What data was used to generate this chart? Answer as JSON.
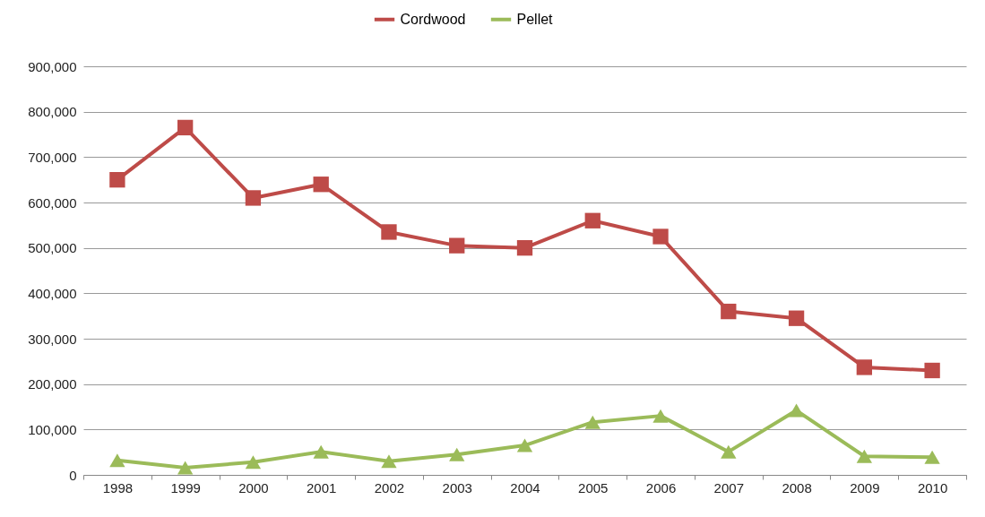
{
  "chart_data": {
    "type": "line",
    "categories": [
      "1998",
      "1999",
      "2000",
      "2001",
      "2002",
      "2003",
      "2004",
      "2005",
      "2006",
      "2007",
      "2008",
      "2009",
      "2010"
    ],
    "series": [
      {
        "name": "Cordwood",
        "color": "#be4b48",
        "marker": "square",
        "values": [
          650000,
          765000,
          610000,
          640000,
          535000,
          505000,
          500000,
          560000,
          525000,
          360000,
          345000,
          237000,
          230000
        ]
      },
      {
        "name": "Pellet",
        "color": "#9bbb59",
        "marker": "triangle",
        "values": [
          32000,
          16000,
          28000,
          51000,
          30000,
          45000,
          65000,
          116000,
          130000,
          51000,
          142000,
          41000,
          39000
        ]
      }
    ],
    "ylim": [
      0,
      900000
    ],
    "yticks": [
      0,
      {
        "value": 100000,
        "label": "100,000"
      },
      {
        "value": 200000,
        "label": "200,000"
      },
      {
        "value": 300000,
        "label": "300,000"
      },
      {
        "value": 400000,
        "label": "400,000"
      },
      {
        "value": 500000,
        "label": "500,000"
      },
      {
        "value": 600000,
        "label": "600,000"
      },
      {
        "value": 700000,
        "label": "700,000"
      },
      {
        "value": 800000,
        "label": "800,000"
      },
      {
        "value": 900000,
        "label": "900,000"
      }
    ],
    "grid": "y",
    "legend": "top"
  }
}
